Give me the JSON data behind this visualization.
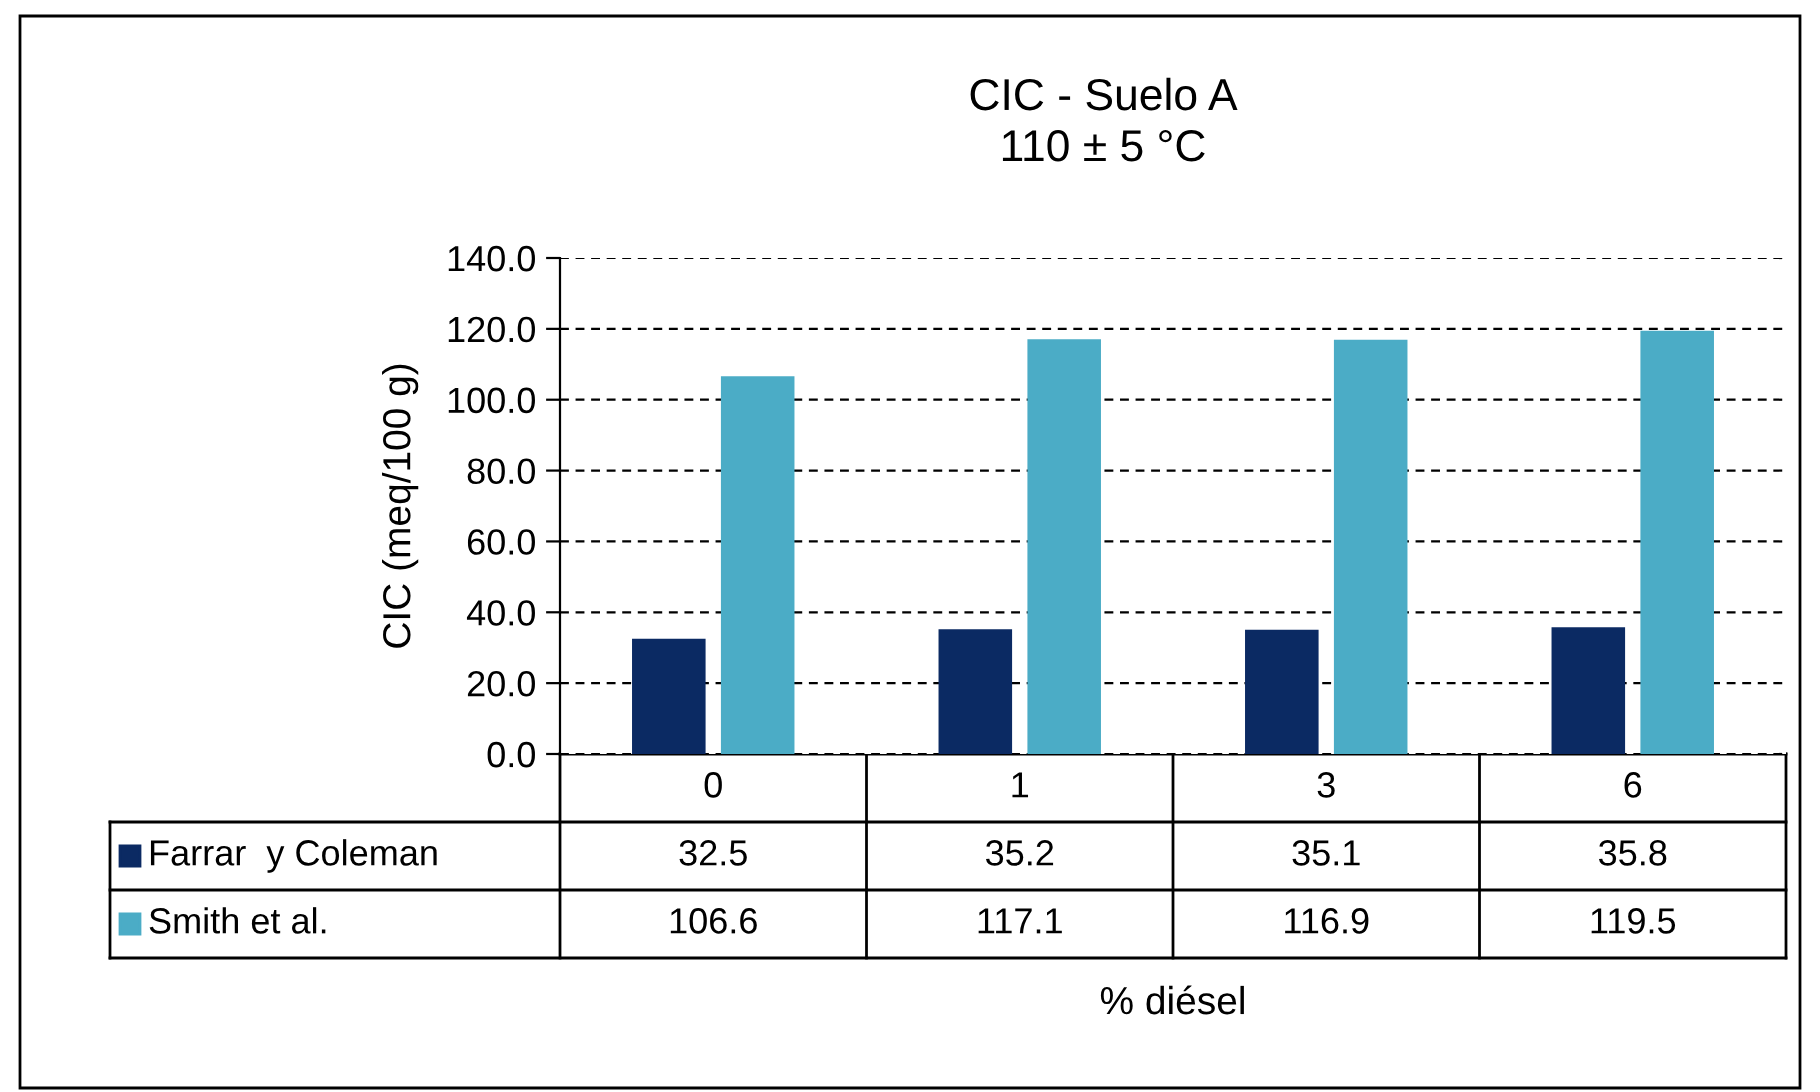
{
  "chart_data": {
    "type": "bar",
    "title": "CIC - Suelo A\n110 ± 5 °C",
    "xlabel": "% diésel",
    "ylabel": "CIC (meq/100 g)",
    "categories": [
      "0",
      "1",
      "3",
      "6"
    ],
    "series": [
      {
        "name": "Farrar  y Coleman",
        "color": "#0b2a63",
        "values": [
          32.5,
          35.2,
          35.1,
          35.8
        ]
      },
      {
        "name": "Smith et al.",
        "color": "#4bacc6",
        "values": [
          106.6,
          117.1,
          116.9,
          119.5
        ]
      }
    ],
    "ylim": [
      0,
      140
    ],
    "yticks": [
      {
        "value": 0,
        "label": "0.0"
      },
      {
        "value": 20,
        "label": "20.0"
      },
      {
        "value": 40,
        "label": "40.0"
      },
      {
        "value": 60,
        "label": "60.0"
      },
      {
        "value": 80,
        "label": "80.0"
      },
      {
        "value": 100,
        "label": "100.0"
      },
      {
        "value": 120,
        "label": "120.0"
      },
      {
        "value": 140,
        "label": "140.0"
      }
    ],
    "grid": "y",
    "data_labels": true,
    "legend": "bottom"
  }
}
